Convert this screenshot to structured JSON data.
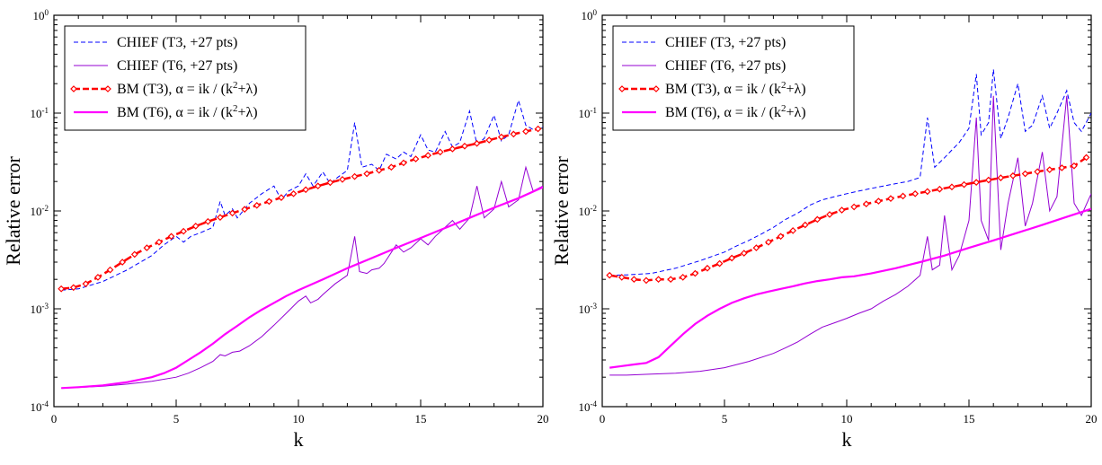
{
  "chart_data": [
    {
      "type": "line",
      "id": "left",
      "xlabel": "k",
      "ylabel": "Relative error",
      "xlim": [
        0,
        20
      ],
      "ylim": [
        0.0001,
        1
      ],
      "yscale": "log",
      "xticks": [
        "0",
        "5",
        "10",
        "15",
        "20"
      ],
      "legend_position": "top-left",
      "series": [
        {
          "name": "CHIEF (T3, +27 pts)",
          "color": "#0000ff",
          "style": "dashed",
          "x": [
            0.3,
            1,
            2,
            3,
            4,
            4.5,
            5,
            5.3,
            5.6,
            6,
            6.5,
            6.8,
            7,
            7.3,
            7.5,
            8,
            8.5,
            9,
            9.3,
            9.6,
            10,
            10.3,
            10.6,
            11,
            11.3,
            11.6,
            12,
            12.3,
            12.6,
            13,
            13.3,
            13.6,
            14,
            14.3,
            14.6,
            15,
            15.3,
            15.6,
            16,
            16.3,
            16.6,
            17,
            17.3,
            17.6,
            18,
            18.3,
            18.6,
            19,
            19.3,
            19.6,
            20
          ],
          "y": [
            0.00155,
            0.0016,
            0.0019,
            0.0025,
            0.0035,
            0.0045,
            0.0055,
            0.0048,
            0.0055,
            0.006,
            0.0068,
            0.0125,
            0.009,
            0.0105,
            0.0085,
            0.012,
            0.015,
            0.018,
            0.013,
            0.016,
            0.018,
            0.024,
            0.018,
            0.025,
            0.019,
            0.022,
            0.026,
            0.08,
            0.028,
            0.03,
            0.026,
            0.038,
            0.034,
            0.04,
            0.036,
            0.06,
            0.042,
            0.04,
            0.065,
            0.045,
            0.05,
            0.105,
            0.048,
            0.055,
            0.095,
            0.052,
            0.06,
            0.135,
            0.075,
            0.068,
            0.072
          ]
        },
        {
          "name": "CHIEF (T6, +27 pts)",
          "color": "#9400d3",
          "style": "solid",
          "x": [
            0.3,
            1,
            2,
            3,
            4,
            5,
            5.5,
            6,
            6.5,
            6.8,
            7,
            7.3,
            7.6,
            8,
            8.5,
            9,
            9.5,
            10,
            10.3,
            10.5,
            10.8,
            11,
            11.5,
            12,
            12.3,
            12.5,
            12.8,
            13,
            13.3,
            13.5,
            14,
            14.3,
            14.6,
            15,
            15.3,
            15.6,
            16,
            16.3,
            16.6,
            17,
            17.3,
            17.6,
            18,
            18.3,
            18.6,
            19,
            19.3,
            19.6,
            20
          ],
          "y": [
            0.000155,
            0.000157,
            0.000162,
            0.00017,
            0.000182,
            0.0002,
            0.00022,
            0.00025,
            0.00029,
            0.00034,
            0.00033,
            0.00036,
            0.00037,
            0.00042,
            0.00052,
            0.00068,
            0.0009,
            0.0012,
            0.00135,
            0.00115,
            0.00125,
            0.0014,
            0.0018,
            0.0022,
            0.0055,
            0.0024,
            0.0023,
            0.0025,
            0.0026,
            0.0029,
            0.0045,
            0.0038,
            0.0042,
            0.0052,
            0.0045,
            0.0055,
            0.0068,
            0.008,
            0.0065,
            0.0085,
            0.018,
            0.0085,
            0.0105,
            0.02,
            0.011,
            0.013,
            0.028,
            0.016,
            0.018
          ]
        },
        {
          "name": "BM (T3), α = ik / (k²+λ)",
          "color": "#ff0000",
          "style": "dashed-markers",
          "x": [
            0.3,
            0.8,
            1.3,
            1.8,
            2.3,
            2.8,
            3.3,
            3.8,
            4.3,
            4.8,
            5.3,
            5.8,
            6.3,
            6.8,
            7.3,
            7.8,
            8.3,
            8.8,
            9.3,
            9.8,
            10.3,
            10.8,
            11.3,
            11.8,
            12.3,
            12.8,
            13.3,
            13.8,
            14.3,
            14.8,
            15.3,
            15.8,
            16.3,
            16.8,
            17.3,
            17.8,
            18.3,
            18.8,
            19.3,
            19.8
          ],
          "y": [
            0.0016,
            0.00165,
            0.0018,
            0.0021,
            0.0025,
            0.003,
            0.0036,
            0.0042,
            0.0048,
            0.0055,
            0.0062,
            0.007,
            0.0078,
            0.0086,
            0.0095,
            0.0104,
            0.0114,
            0.0125,
            0.0137,
            0.015,
            0.0165,
            0.018,
            0.0195,
            0.021,
            0.0225,
            0.024,
            0.026,
            0.028,
            0.031,
            0.034,
            0.037,
            0.04,
            0.043,
            0.046,
            0.049,
            0.053,
            0.057,
            0.061,
            0.065,
            0.069
          ]
        },
        {
          "name": "BM (T6), α = ik / (k²+λ)",
          "color": "#ff00ff",
          "style": "solid-thick",
          "x": [
            0.3,
            1,
            2,
            3,
            4,
            4.5,
            5,
            5.5,
            6,
            6.5,
            7,
            7.5,
            8,
            8.5,
            9,
            9.5,
            10,
            11,
            12,
            13,
            14,
            15,
            16,
            17,
            18,
            19,
            20
          ],
          "y": [
            0.000155,
            0.000158,
            0.000165,
            0.000178,
            0.0002,
            0.00022,
            0.00025,
            0.0003,
            0.00036,
            0.00044,
            0.00055,
            0.00067,
            0.00082,
            0.00098,
            0.00115,
            0.00135,
            0.00155,
            0.002,
            0.0026,
            0.0033,
            0.0042,
            0.0053,
            0.0067,
            0.0085,
            0.0108,
            0.0135,
            0.0175
          ]
        }
      ]
    },
    {
      "type": "line",
      "id": "right",
      "xlabel": "k",
      "ylabel": "Relative error",
      "xlim": [
        0,
        20
      ],
      "ylim": [
        0.0001,
        1
      ],
      "yscale": "log",
      "xticks": [
        "0",
        "5",
        "10",
        "15",
        "20"
      ],
      "legend_position": "top-left",
      "series": [
        {
          "name": "CHIEF (T3, +27 pts)",
          "color": "#0000ff",
          "style": "dashed",
          "x": [
            0.3,
            1,
            2,
            3,
            4,
            5,
            5.5,
            6,
            6.5,
            7,
            7.5,
            8,
            8.5,
            9,
            9.5,
            10,
            10.5,
            11,
            11.5,
            12,
            12.5,
            13,
            13.3,
            13.6,
            14,
            14.3,
            14.6,
            15,
            15.3,
            15.5,
            15.8,
            16,
            16.3,
            16.6,
            17,
            17.3,
            17.6,
            18,
            18.3,
            18.6,
            19,
            19.3,
            19.6,
            20
          ],
          "y": [
            0.0022,
            0.00222,
            0.0023,
            0.0026,
            0.0031,
            0.0038,
            0.0044,
            0.005,
            0.0058,
            0.0068,
            0.0082,
            0.0095,
            0.0115,
            0.013,
            0.014,
            0.015,
            0.016,
            0.017,
            0.018,
            0.019,
            0.02,
            0.022,
            0.09,
            0.028,
            0.035,
            0.042,
            0.05,
            0.07,
            0.25,
            0.06,
            0.08,
            0.28,
            0.055,
            0.09,
            0.2,
            0.065,
            0.075,
            0.15,
            0.07,
            0.1,
            0.17,
            0.08,
            0.065,
            0.1
          ]
        },
        {
          "name": "CHIEF (T6, +27 pts)",
          "color": "#9400d3",
          "style": "solid",
          "x": [
            0.3,
            1,
            2,
            3,
            4,
            5,
            6,
            7,
            7.5,
            8,
            8.5,
            9,
            9.5,
            10,
            10.5,
            11,
            11.5,
            12,
            12.5,
            13,
            13.3,
            13.5,
            13.8,
            14,
            14.3,
            14.6,
            15,
            15.3,
            15.5,
            15.8,
            16,
            16.3,
            16.6,
            17,
            17.3,
            17.6,
            18,
            18.3,
            18.6,
            19,
            19.3,
            19.6,
            20
          ],
          "y": [
            0.00021,
            0.00021,
            0.000215,
            0.00022,
            0.00023,
            0.00025,
            0.00029,
            0.00035,
            0.0004,
            0.00046,
            0.00055,
            0.00065,
            0.00072,
            0.0008,
            0.0009,
            0.001,
            0.0012,
            0.0014,
            0.0017,
            0.0022,
            0.0055,
            0.0025,
            0.0028,
            0.009,
            0.0025,
            0.0035,
            0.008,
            0.09,
            0.008,
            0.005,
            0.15,
            0.004,
            0.012,
            0.035,
            0.007,
            0.012,
            0.04,
            0.01,
            0.014,
            0.15,
            0.012,
            0.009,
            0.015
          ]
        },
        {
          "name": "BM (T3), α = ik / (k²+λ)",
          "color": "#ff0000",
          "style": "dashed-markers",
          "x": [
            0.3,
            0.8,
            1.3,
            1.8,
            2.3,
            2.8,
            3.3,
            3.8,
            4.3,
            4.8,
            5.3,
            5.8,
            6.3,
            6.8,
            7.3,
            7.8,
            8.3,
            8.8,
            9.3,
            9.8,
            10.3,
            10.8,
            11.3,
            11.8,
            12.3,
            12.8,
            13.3,
            13.8,
            14.3,
            14.8,
            15.3,
            15.8,
            16.3,
            16.8,
            17.3,
            17.8,
            18.3,
            18.8,
            19.3,
            19.8
          ],
          "y": [
            0.0022,
            0.0021,
            0.002,
            0.00195,
            0.002,
            0.002,
            0.0021,
            0.0023,
            0.0026,
            0.0029,
            0.0033,
            0.0037,
            0.0042,
            0.0048,
            0.0055,
            0.0063,
            0.0072,
            0.0082,
            0.0092,
            0.0102,
            0.011,
            0.0118,
            0.0126,
            0.0134,
            0.0142,
            0.015,
            0.0158,
            0.0167,
            0.0176,
            0.0186,
            0.0196,
            0.0207,
            0.0218,
            0.0229,
            0.024,
            0.0252,
            0.0264,
            0.0276,
            0.0289,
            0.0352
          ]
        },
        {
          "name": "BM (T6), α = ik / (k²+λ)",
          "color": "#ff00ff",
          "style": "solid-thick",
          "x": [
            0.3,
            0.8,
            1.3,
            1.8,
            2.3,
            2.8,
            3.3,
            3.8,
            4.3,
            4.8,
            5.3,
            5.8,
            6.3,
            6.8,
            7.3,
            7.8,
            8.3,
            8.8,
            9.3,
            9.8,
            10.3,
            11,
            12,
            13,
            14,
            15,
            16,
            17,
            18,
            19,
            20
          ],
          "y": [
            0.00025,
            0.00026,
            0.00027,
            0.00028,
            0.00032,
            0.00042,
            0.00055,
            0.0007,
            0.00085,
            0.001,
            0.00115,
            0.00128,
            0.0014,
            0.0015,
            0.0016,
            0.0017,
            0.00182,
            0.00192,
            0.002,
            0.0021,
            0.00215,
            0.0023,
            0.0026,
            0.003,
            0.0035,
            0.0042,
            0.005,
            0.006,
            0.0072,
            0.0087,
            0.0105
          ]
        }
      ]
    }
  ]
}
